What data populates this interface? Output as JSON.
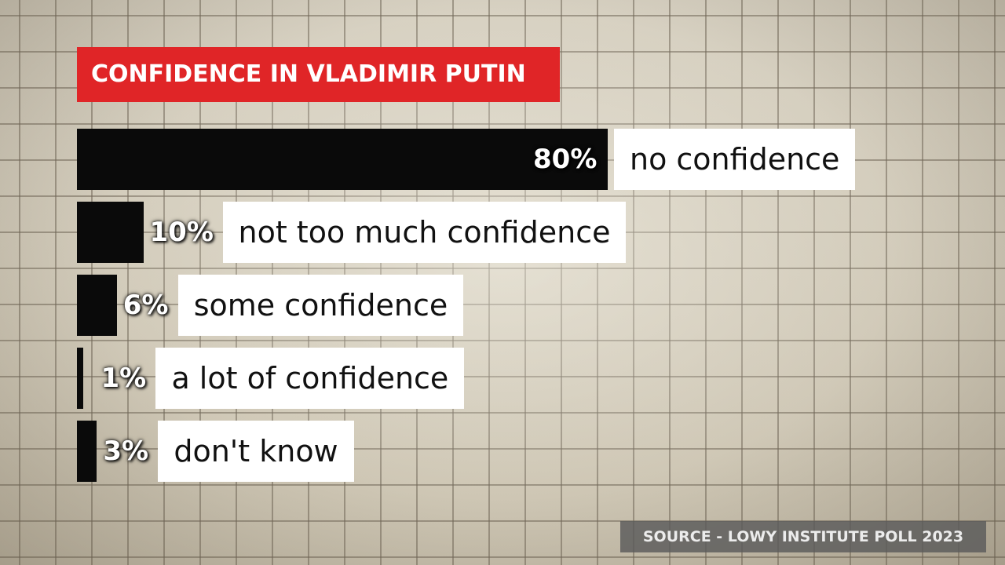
{
  "title": "CONFIDENCE IN VLADIMIR PUTIN",
  "source": "SOURCE - LOWY INSTITUTE POLL 2023",
  "colors": {
    "title_bg": "#e02527",
    "bar": "#0a0a0a",
    "label_bg": "#ffffff",
    "source_bg": "#5a5a5a"
  },
  "chart_data": {
    "type": "bar",
    "orientation": "horizontal",
    "title": "CONFIDENCE IN VLADIMIR PUTIN",
    "categories": [
      "no confidence",
      "not too much confidence",
      "some confidence",
      "a lot of confidence",
      "don't know"
    ],
    "values": [
      80,
      10,
      6,
      1,
      3
    ],
    "value_labels": [
      "80%",
      "10%",
      "6%",
      "1%",
      "3%"
    ],
    "unit": "%",
    "xlim": [
      0,
      100
    ],
    "grid": false
  }
}
